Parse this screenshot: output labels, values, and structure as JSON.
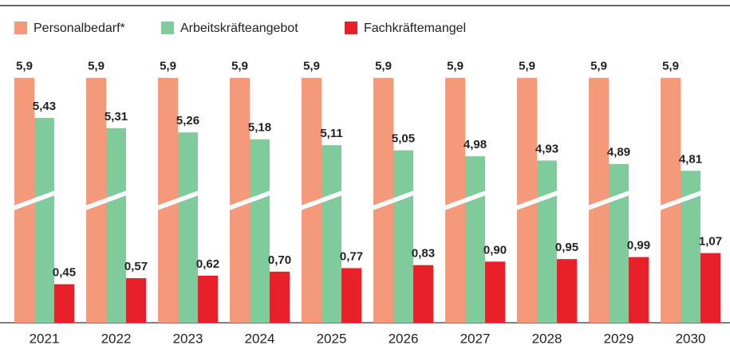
{
  "chart_data": {
    "type": "bar",
    "categories": [
      "2021",
      "2022",
      "2023",
      "2024",
      "2025",
      "2026",
      "2027",
      "2028",
      "2029",
      "2030"
    ],
    "series": [
      {
        "name": "Personalbedarf*",
        "color": "#f4997a",
        "values": [
          5.9,
          5.9,
          5.9,
          5.9,
          5.9,
          5.9,
          5.9,
          5.9,
          5.9,
          5.9
        ],
        "value_labels": [
          "5,9",
          "5,9",
          "5,9",
          "5,9",
          "5,9",
          "5,9",
          "5,9",
          "5,9",
          "5,9",
          "5,9"
        ]
      },
      {
        "name": "Arbeitskräfteangebot",
        "color": "#7fcb9c",
        "values": [
          5.43,
          5.31,
          5.26,
          5.18,
          5.11,
          5.05,
          4.98,
          4.93,
          4.89,
          4.81
        ],
        "value_labels": [
          "5,43",
          "5,31",
          "5,26",
          "5,18",
          "5,11",
          "5,05",
          "4,98",
          "4,93",
          "4,89",
          "4,81"
        ]
      },
      {
        "name": "Fachkräftemangel",
        "color": "#e8202a",
        "values": [
          0.45,
          0.57,
          0.62,
          0.7,
          0.77,
          0.83,
          0.9,
          0.95,
          0.99,
          1.07
        ],
        "value_labels": [
          "0,45",
          "0,57",
          "0,62",
          "0,70",
          "0,77",
          "0,83",
          "0,90",
          "0,95",
          "0,99",
          "1,07"
        ]
      }
    ]
  }
}
